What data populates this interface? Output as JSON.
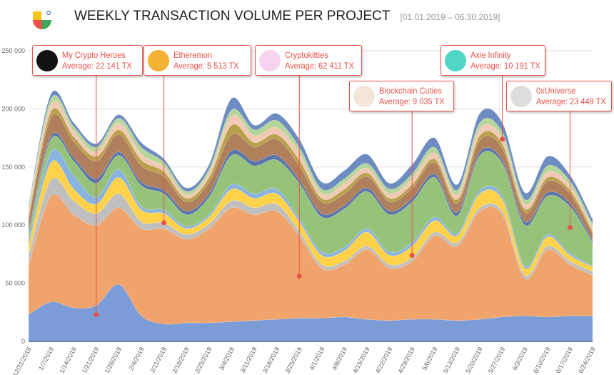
{
  "header": {
    "title": "WEEKLY TRANSACTION VOLUME PER PROJECT",
    "date_range": "[01.01.2019 – 06.30.2019]"
  },
  "chart_data": {
    "type": "area",
    "stacked": true,
    "smooth": true,
    "title": "WEEKLY TRANSACTION VOLUME PER PROJECT",
    "ylim": [
      0,
      250000
    ],
    "yticks": [
      "0",
      "50 000",
      "100 000",
      "150 000",
      "200 000",
      "250 000"
    ],
    "grid": true,
    "categories": [
      "12/31/2018",
      "1/7/2019",
      "1/14/2019",
      "1/21/2019",
      "1/28/2019",
      "2/4/2019",
      "2/11/2019",
      "2/18/2019",
      "2/25/2019",
      "3/4/2019",
      "3/11/2019",
      "3/18/2019",
      "3/25/2019",
      "4/1/2019",
      "4/8/2019",
      "4/15/2019",
      "4/22/2019",
      "4/29/2019",
      "5/6/2019",
      "5/13/2019",
      "5/20/2019",
      "5/27/2019",
      "6/3/2019",
      "6/10/2019",
      "6/17/2019",
      "6/24/2019"
    ],
    "series": [
      {
        "color": "#7b9cd6",
        "values": [
          23000,
          34000,
          29000,
          31000,
          49000,
          22000,
          15000,
          16000,
          16000,
          17000,
          18000,
          19000,
          20000,
          20000,
          21000,
          19000,
          18000,
          19000,
          19000,
          18000,
          19000,
          21000,
          22000,
          21000,
          22000,
          22000
        ]
      },
      {
        "color": "#f0a46c",
        "values": [
          43000,
          91000,
          80000,
          69000,
          66000,
          75000,
          82000,
          72000,
          81000,
          98000,
          91000,
          93000,
          71000,
          43000,
          45000,
          60000,
          45000,
          50000,
          72000,
          64000,
          93000,
          88000,
          32000,
          58000,
          44000,
          35000
        ]
      },
      {
        "color": "#bfbfbf",
        "values": [
          8000,
          14000,
          12000,
          10000,
          12000,
          6000,
          5000,
          4000,
          4000,
          6000,
          6000,
          6000,
          4000,
          3000,
          3000,
          3000,
          3000,
          3000,
          3000,
          3000,
          3000,
          3000,
          3000,
          3000,
          3000,
          3000
        ]
      },
      {
        "color": "#ffd24a",
        "values": [
          8000,
          15000,
          10000,
          8000,
          14000,
          10000,
          8000,
          5000,
          6000,
          10000,
          8000,
          9000,
          8000,
          8000,
          9000,
          12000,
          8000,
          10000,
          10000,
          6000,
          12000,
          10000,
          6000,
          8000,
          5000,
          4000
        ]
      },
      {
        "color": "#8ab4e0",
        "values": [
          4000,
          9000,
          12000,
          6000,
          7000,
          3000,
          3000,
          2000,
          2000,
          4000,
          4000,
          4000,
          3000,
          3000,
          3000,
          3000,
          3000,
          3000,
          3000,
          2000,
          3000,
          3000,
          2000,
          2000,
          2000,
          1000
        ]
      },
      {
        "color": "#97c27a",
        "values": [
          6000,
          11000,
          12000,
          12000,
          12000,
          18000,
          14000,
          10000,
          15000,
          25000,
          24000,
          25000,
          30000,
          30000,
          33000,
          32000,
          32000,
          35000,
          34000,
          15000,
          30000,
          28000,
          35000,
          33000,
          40000,
          20000
        ]
      },
      {
        "color": "#5a76ad",
        "values": [
          3000,
          3000,
          3000,
          4000,
          3000,
          3000,
          3000,
          3000,
          3000,
          4000,
          4000,
          4000,
          3000,
          3000,
          3000,
          3000,
          3000,
          3000,
          3000,
          3000,
          3000,
          3000,
          3000,
          3000,
          3000,
          2000
        ]
      },
      {
        "color": "#b07f5b",
        "values": [
          10000,
          16000,
          14000,
          15000,
          15000,
          14000,
          12000,
          8000,
          10000,
          14000,
          12000,
          14000,
          12000,
          10000,
          10000,
          10000,
          8000,
          9000,
          10000,
          8000,
          10000,
          10000,
          8000,
          10000,
          8000,
          6000
        ]
      },
      {
        "color": "#b9a04a",
        "values": [
          3000,
          5000,
          4000,
          4000,
          4000,
          5000,
          4000,
          3000,
          4000,
          8000,
          4000,
          4000,
          5000,
          3000,
          4000,
          3000,
          3000,
          3000,
          3000,
          3000,
          4000,
          4000,
          3000,
          3000,
          3000,
          2000
        ]
      },
      {
        "color": "#f2c9b5",
        "values": [
          4000,
          6000,
          5000,
          4000,
          6000,
          5000,
          4000,
          3000,
          4000,
          8000,
          6000,
          6000,
          6000,
          4000,
          5000,
          4000,
          4000,
          5000,
          5000,
          4000,
          6000,
          5000,
          4000,
          5000,
          4000,
          3000
        ]
      },
      {
        "color": "#b5d69a",
        "values": [
          3000,
          5000,
          4000,
          4000,
          4000,
          6000,
          4000,
          3000,
          3000,
          5000,
          5000,
          6000,
          5000,
          4000,
          4000,
          4000,
          4000,
          4000,
          5000,
          4000,
          5000,
          5000,
          4000,
          5000,
          4000,
          3000
        ]
      },
      {
        "color": "#6d8cc2",
        "values": [
          2000,
          4000,
          3000,
          3000,
          3000,
          4000,
          3000,
          3000,
          4000,
          10000,
          4000,
          6000,
          7000,
          6000,
          7000,
          8000,
          5000,
          8000,
          8000,
          5000,
          8000,
          8000,
          6000,
          8000,
          5000,
          4000
        ]
      }
    ],
    "annotations": [
      {
        "name": "My Crypto Heroes",
        "text": "Average: 22 141 TX",
        "week": "1/21/2019",
        "value": 23000,
        "icon": "mch-logo-icon",
        "icon_color": "#111111"
      },
      {
        "name": "Etheremon",
        "text": "Average: 5 513 TX",
        "week": "2/11/2019",
        "value": 102000,
        "icon": "etheremon-coin-icon",
        "icon_color": "#f5b335"
      },
      {
        "name": "Cryptokitties",
        "text": "Average: 62 411 TX",
        "week": "3/25/2019",
        "value": 56000,
        "icon": "cryptokitty-icon",
        "icon_color": "#f6d3ee"
      },
      {
        "name": "Blockchain Cuties",
        "text": "Average: 9 035 TX",
        "week": "4/29/2019",
        "value": 74000,
        "icon": "cutie-cat-icon",
        "icon_color": "#f3e6d6"
      },
      {
        "name": "Axie Infinity",
        "text": "Average: 10 191 TX",
        "week": "5/27/2019",
        "value": 174000,
        "icon": "axie-icon",
        "icon_color": "#4fd6c4"
      },
      {
        "name": "0xUniverse",
        "text": "Average: 23 449 TX",
        "week": "6/17/2019",
        "value": 98000,
        "icon": "planet-icon",
        "icon_color": "#dddddd"
      }
    ],
    "annotation_color": "#e8524a"
  }
}
